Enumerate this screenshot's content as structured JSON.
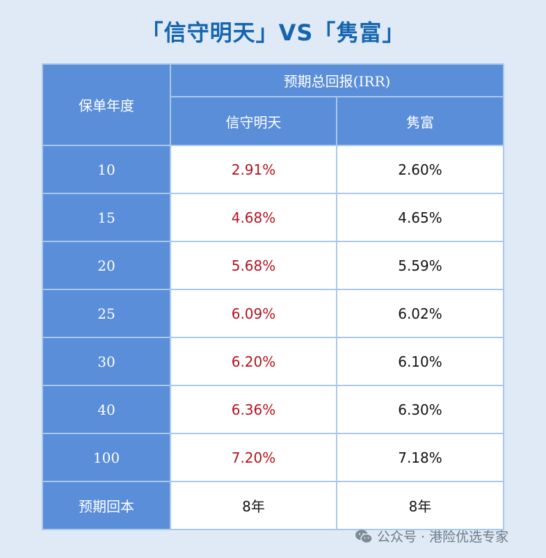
{
  "title": "「信守明天」VS「隽富」",
  "table": {
    "corner_header": "保单年度",
    "group_header": "预期总回报(IRR)",
    "product_a": "信守明天",
    "product_b": "隽富",
    "rows": [
      {
        "year": "10",
        "a": "2.91%",
        "b": "2.60%"
      },
      {
        "year": "15",
        "a": "4.68%",
        "b": "4.65%"
      },
      {
        "year": "20",
        "a": "5.68%",
        "b": "5.59%"
      },
      {
        "year": "25",
        "a": "6.09%",
        "b": "6.02%"
      },
      {
        "year": "30",
        "a": "6.20%",
        "b": "6.10%"
      },
      {
        "year": "40",
        "a": "6.36%",
        "b": "6.30%"
      },
      {
        "year": "100",
        "a": "7.20%",
        "b": "7.18%"
      }
    ],
    "payback_label": "预期回本",
    "payback_a": "8年",
    "payback_b": "8年"
  },
  "watermark": {
    "icon": "wechat-icon",
    "text": "公众号 · 港险优选专家"
  },
  "colors": {
    "background": "#dfeaf6",
    "title": "#1565b0",
    "header_fill": "#5b8ed8",
    "highlight_value": "#b3121f"
  }
}
